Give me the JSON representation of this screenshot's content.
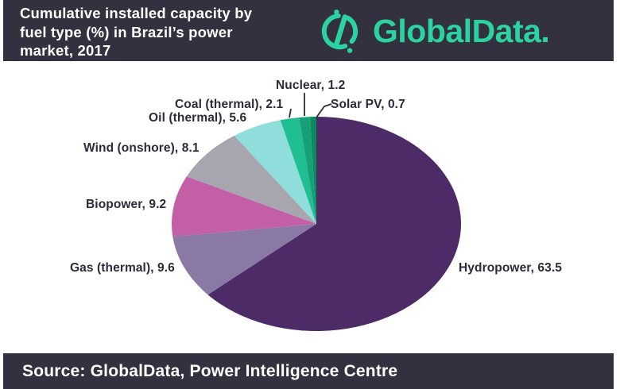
{
  "header": {
    "title": "Cumulative installed capacity by\nfuel type (%) in Brazil’s power\nmarket, 2017"
  },
  "logo": {
    "text": "GlobalData.",
    "brand_color": "#2BD3A2"
  },
  "footer": {
    "source_text": "Source: GlobalData, Power Intelligence Centre"
  },
  "colors": {
    "bar_background": "#333040",
    "page_background": "#ffffff",
    "label_text": "#2D2A39"
  },
  "chart_data": {
    "type": "pie",
    "title": "Cumulative installed capacity by fuel type (%) in Brazil's power market, 2017",
    "unit": "%",
    "start_angle_deg": 0,
    "direction": "clockwise",
    "legend_position": "none",
    "slices": [
      {
        "label": "Hydropower",
        "value": 63.5,
        "color": "#4C2B66",
        "display": "Hydropower, 63.5"
      },
      {
        "label": "Gas (thermal)",
        "value": 9.6,
        "color": "#8B79A5",
        "display": "Gas (thermal), 9.6"
      },
      {
        "label": "Biopower",
        "value": 9.2,
        "color": "#C25FA6",
        "display": "Biopower, 9.2"
      },
      {
        "label": "Wind (onshore)",
        "value": 8.1,
        "color": "#A7A6AF",
        "display": "Wind (onshore), 8.1"
      },
      {
        "label": "Oil (thermal)",
        "value": 5.6,
        "color": "#8FDEDB",
        "display": "Oil (thermal), 5.6"
      },
      {
        "label": "Coal (thermal)",
        "value": 2.1,
        "color": "#1FBF92",
        "display": "Coal (thermal), 2.1"
      },
      {
        "label": "Nuclear",
        "value": 1.2,
        "color": "#17A077",
        "display": "Nuclear, 1.2"
      },
      {
        "label": "Solar PV",
        "value": 0.7,
        "color": "#0C8A5F",
        "display": "Solar PV, 0.7"
      }
    ]
  }
}
